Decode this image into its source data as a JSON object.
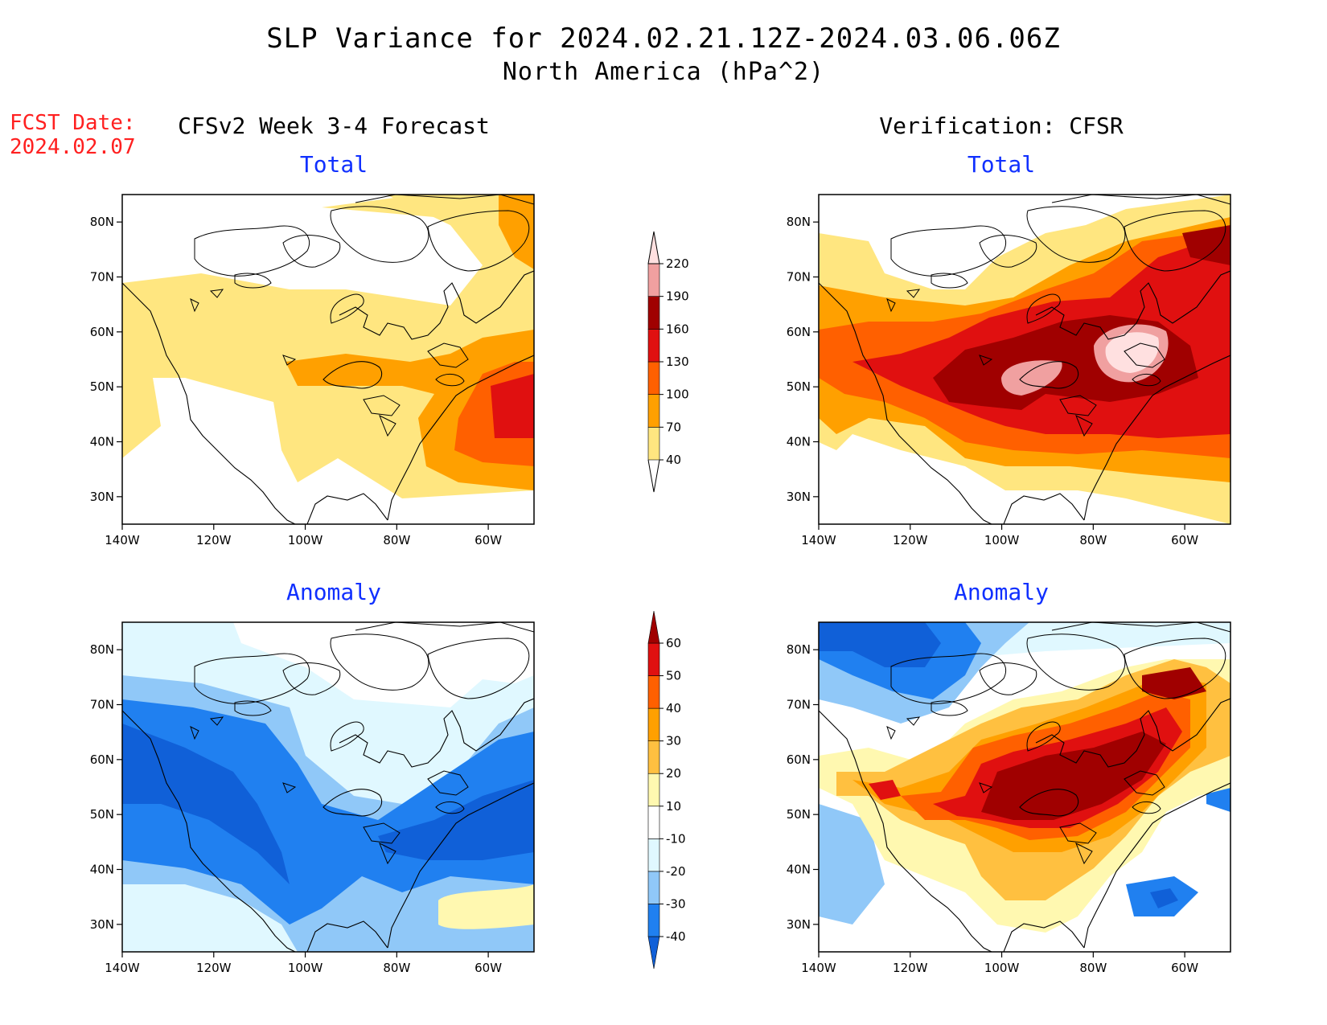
{
  "title_line1": "SLP Variance for 2024.02.21.12Z-2024.03.06.06Z",
  "title_line2": "North America (hPa^2)",
  "fcst_label": "FCST Date:",
  "fcst_date": "2024.02.07",
  "col_left_header": "CFSv2 Week 3-4 Forecast",
  "col_right_header": "Verification: CFSR",
  "panels": {
    "fcst_total": "Total",
    "verif_total": "Total",
    "fcst_anomaly": "Anomaly",
    "verif_anomaly": "Anomaly"
  },
  "axes": {
    "lon_labels": [
      "140W",
      "120W",
      "100W",
      "80W",
      "60W"
    ],
    "lat_labels": [
      "80N",
      "70N",
      "60N",
      "50N",
      "40N",
      "30N"
    ],
    "lon_values": [
      -140,
      -120,
      -100,
      -80,
      -60
    ],
    "lat_values": [
      80,
      70,
      60,
      50,
      40,
      30
    ],
    "lon_range": [
      -140,
      -50
    ],
    "lat_range": [
      25,
      85
    ]
  },
  "total_colorbar": {
    "labels": [
      "40",
      "70",
      "100",
      "130",
      "160",
      "190",
      "220"
    ],
    "colors": [
      "#ffe680",
      "#ffa000",
      "#ff6000",
      "#e01010",
      "#a00000",
      "#f0a0a0",
      "#ffe0e0"
    ]
  },
  "anomaly_colorbar": {
    "labels": [
      "-40",
      "-30",
      "-20",
      "-10",
      "10",
      "20",
      "30",
      "40",
      "50",
      "60"
    ],
    "colors": [
      "#1060d8",
      "#2080f0",
      "#90c8f8",
      "#e0f8ff",
      "#ffffff",
      "#fff8b0",
      "#ffc040",
      "#ffa000",
      "#ff6000",
      "#e01010",
      "#a00000"
    ]
  }
}
